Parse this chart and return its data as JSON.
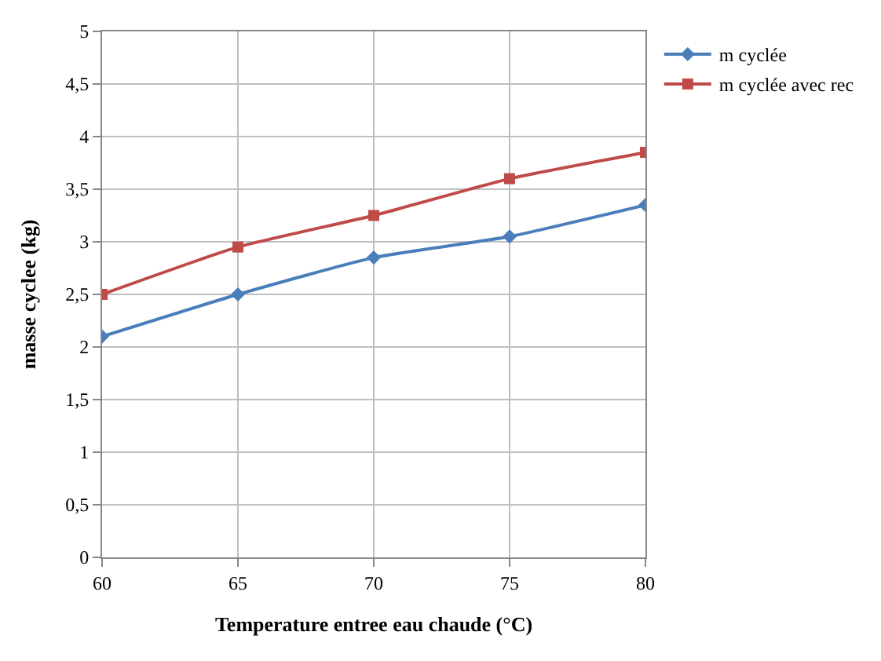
{
  "chart_data": {
    "type": "line",
    "xlabel": "Temperature entree eau chaude (°C)",
    "ylabel": "masse cyclee (kg)",
    "x": [
      60,
      65,
      70,
      75,
      80
    ],
    "series": [
      {
        "name": "m cyclée",
        "color": "#4a7ebb",
        "values": [
          2.1,
          2.5,
          2.85,
          3.05,
          3.35
        ],
        "marker": "diamond"
      },
      {
        "name": "m cyclée avec rec",
        "color": "#be4b48",
        "values": [
          2.5,
          2.95,
          3.25,
          3.6,
          3.85
        ],
        "marker": "square"
      }
    ],
    "xlim": [
      60,
      80
    ],
    "xticks": [
      60,
      65,
      70,
      75,
      80
    ],
    "ylim": [
      0,
      5
    ],
    "yticks": [
      0,
      {
        "value": 0.5,
        "label": "0,5"
      },
      1,
      {
        "value": 1.5,
        "label": "1,5"
      },
      2,
      {
        "value": 2.5,
        "label": "2,5"
      },
      3,
      {
        "value": 3.5,
        "label": "3,5"
      },
      4,
      {
        "value": 4.5,
        "label": "4,5"
      },
      5
    ],
    "grid": true,
    "legend": "top right"
  }
}
